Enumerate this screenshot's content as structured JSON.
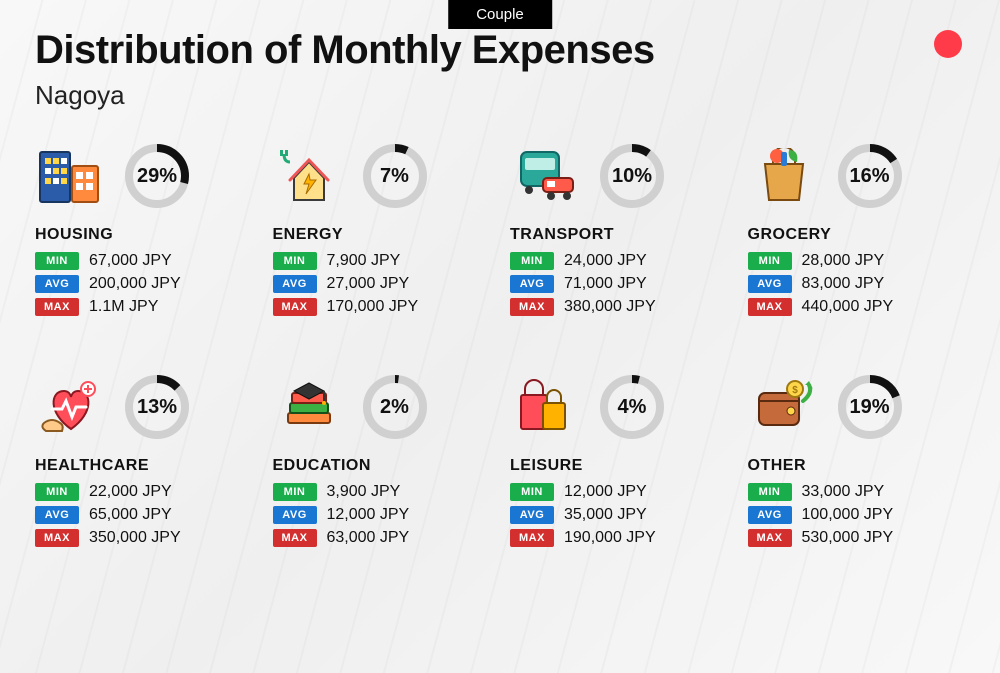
{
  "tag": "Couple",
  "title": "Distribution of Monthly Expenses",
  "subtitle": "Nagoya",
  "labels": {
    "min": "MIN",
    "avg": "AVG",
    "max": "MAX"
  },
  "colors": {
    "min_badge": "#1aad4b",
    "avg_badge": "#1976d2",
    "max_badge": "#d32f2f",
    "ring_track": "#d0d0d0",
    "ring_fill": "#111",
    "accent_dot": "#ff3b4a",
    "background": "#f5f5f5",
    "text": "#111"
  },
  "ring": {
    "size": 72,
    "stroke_width": 8
  },
  "categories": [
    {
      "id": "housing",
      "name": "HOUSING",
      "percent": 29,
      "pct_label": "29%",
      "min": "67,000 JPY",
      "avg": "200,000 JPY",
      "max": "1.1M JPY",
      "icon": "housing"
    },
    {
      "id": "energy",
      "name": "ENERGY",
      "percent": 7,
      "pct_label": "7%",
      "min": "7,900 JPY",
      "avg": "27,000 JPY",
      "max": "170,000 JPY",
      "icon": "energy"
    },
    {
      "id": "transport",
      "name": "TRANSPORT",
      "percent": 10,
      "pct_label": "10%",
      "min": "24,000 JPY",
      "avg": "71,000 JPY",
      "max": "380,000 JPY",
      "icon": "transport"
    },
    {
      "id": "grocery",
      "name": "GROCERY",
      "percent": 16,
      "pct_label": "16%",
      "min": "28,000 JPY",
      "avg": "83,000 JPY",
      "max": "440,000 JPY",
      "icon": "grocery"
    },
    {
      "id": "healthcare",
      "name": "HEALTHCARE",
      "percent": 13,
      "pct_label": "13%",
      "min": "22,000 JPY",
      "avg": "65,000 JPY",
      "max": "350,000 JPY",
      "icon": "healthcare"
    },
    {
      "id": "education",
      "name": "EDUCATION",
      "percent": 2,
      "pct_label": "2%",
      "min": "3,900 JPY",
      "avg": "12,000 JPY",
      "max": "63,000 JPY",
      "icon": "education"
    },
    {
      "id": "leisure",
      "name": "LEISURE",
      "percent": 4,
      "pct_label": "4%",
      "min": "12,000 JPY",
      "avg": "35,000 JPY",
      "max": "190,000 JPY",
      "icon": "leisure"
    },
    {
      "id": "other",
      "name": "OTHER",
      "percent": 19,
      "pct_label": "19%",
      "min": "33,000 JPY",
      "avg": "100,000 JPY",
      "max": "530,000 JPY",
      "icon": "other"
    }
  ]
}
